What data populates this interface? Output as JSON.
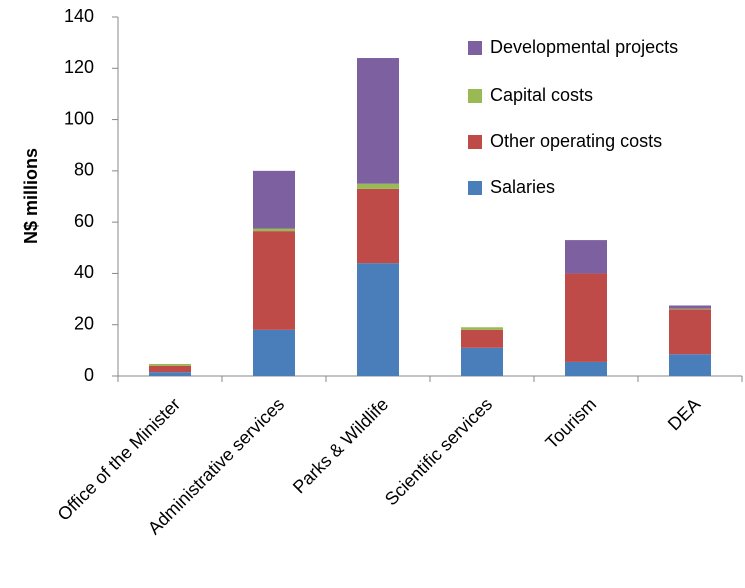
{
  "chart_data": {
    "type": "stacked-bar",
    "y_label": "N$ millions",
    "categories": [
      "Office of the Minister",
      "Administrative services",
      "Parks & Wildlife",
      "Scientific services",
      "Tourism",
      "DEA"
    ],
    "series": [
      {
        "name": "Salaries",
        "color": "#4a7ebb",
        "values": [
          1.5,
          18,
          44,
          11,
          5.5,
          8.5
        ]
      },
      {
        "name": "Other operating costs",
        "color": "#be4b48",
        "values": [
          2.5,
          38.5,
          29,
          7,
          34.5,
          17.5
        ]
      },
      {
        "name": "Capital costs",
        "color": "#98b954",
        "values": [
          0.7,
          1,
          2,
          1,
          0,
          0.3
        ]
      },
      {
        "name": "Developmental projects",
        "color": "#7d60a0",
        "values": [
          0,
          22.5,
          49,
          0,
          13,
          1.2
        ]
      }
    ],
    "ylim": [
      0,
      140
    ],
    "yticks": [
      0,
      20,
      40,
      60,
      80,
      100,
      120,
      140
    ],
    "grid": false,
    "legend": "top-right"
  }
}
